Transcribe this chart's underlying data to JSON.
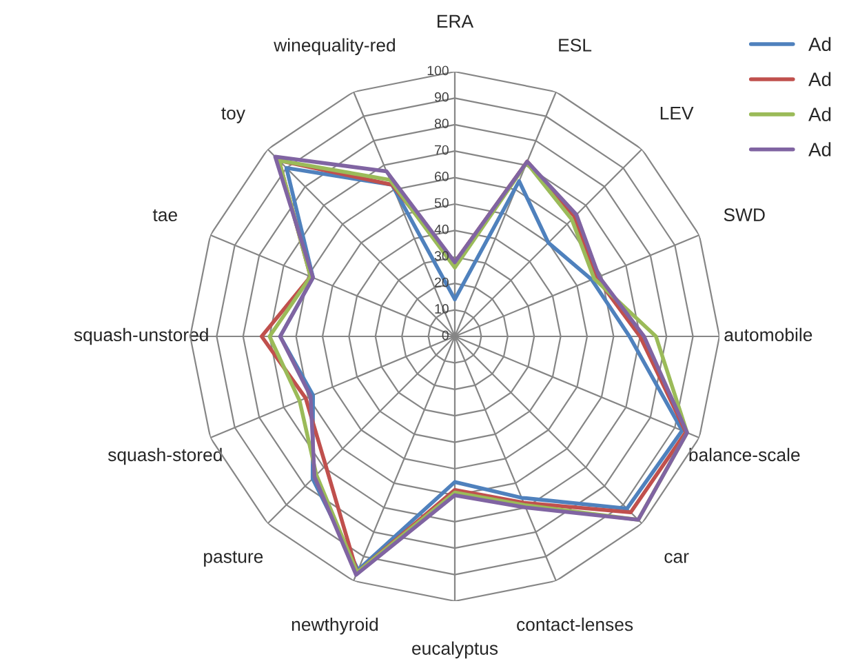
{
  "chart_data": {
    "type": "radar",
    "categories": [
      "ERA",
      "ESL",
      "LEV",
      "SWD",
      "automobile",
      "balance-scale",
      "car",
      "contact-lenses",
      "eucalyptus",
      "newthyroid",
      "pasture",
      "squash-stored",
      "squash-unstored",
      "tae",
      "toy",
      "winequality-red"
    ],
    "series": [
      {
        "name": "Ad",
        "color": "#4f81bd",
        "values": [
          14,
          63.5,
          50,
          56,
          66,
          93,
          92,
          66,
          55,
          95.5,
          76,
          58,
          66,
          58,
          90,
          62
        ]
      },
      {
        "name": "Ad",
        "color": "#c0504d",
        "values": [
          28,
          71.5,
          64,
          58,
          70,
          94.5,
          94,
          68,
          58,
          96.5,
          69,
          61,
          73,
          59,
          94,
          62
        ]
      },
      {
        "name": "Ad",
        "color": "#9bbb59",
        "values": [
          26,
          71,
          62.5,
          57,
          76,
          95,
          98,
          69,
          59,
          96.5,
          74,
          63.5,
          70,
          59,
          94,
          64
        ]
      },
      {
        "name": "Ad",
        "color": "#8064a2",
        "values": [
          28,
          71.5,
          65,
          59,
          71.5,
          95,
          98,
          70,
          60,
          97.5,
          75,
          59,
          66,
          58,
          96,
          67.5
        ]
      }
    ],
    "ylim": [
      0,
      100
    ],
    "yticks": [
      0,
      10,
      20,
      30,
      40,
      50,
      60,
      70,
      80,
      90,
      100
    ],
    "grid": true,
    "legend": "top right"
  }
}
